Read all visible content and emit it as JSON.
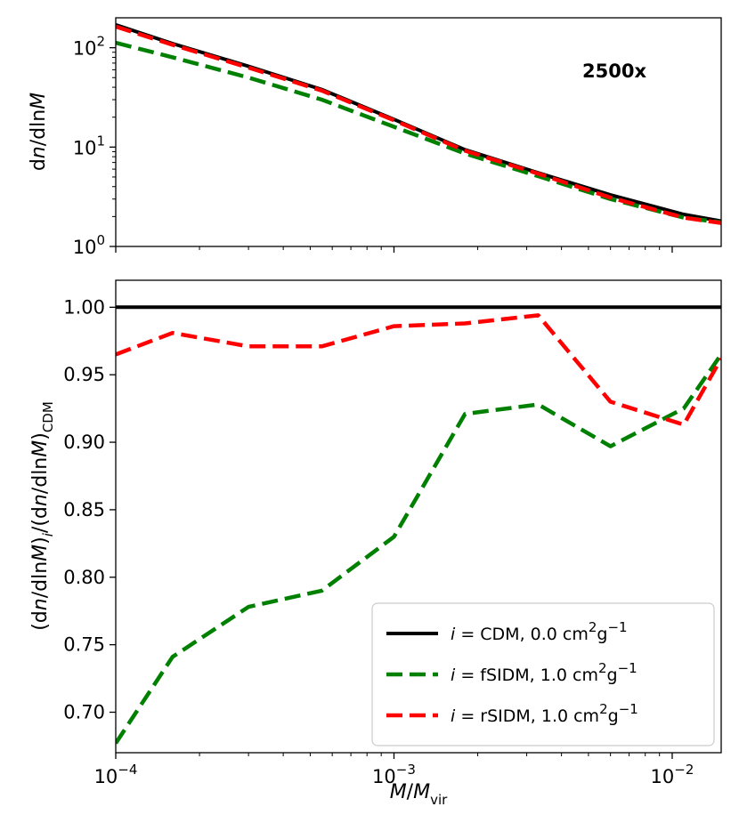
{
  "chart_data": [
    {
      "type": "line",
      "panel": "top",
      "annotation": "2500x",
      "ylabel": "dn/dlnM",
      "ylabel_parts": {
        "prefix": "d",
        "var1": "n",
        "mid": "/dln",
        "var2": "M"
      },
      "yscale": "log",
      "xscale": "log",
      "xlim": [
        0.0001,
        0.015
      ],
      "ylim": [
        1,
        200
      ],
      "yticks": [
        {
          "value": 1,
          "base": "10",
          "exp": "0"
        },
        {
          "value": 10,
          "base": "10",
          "exp": "1"
        },
        {
          "value": 100,
          "base": "10",
          "exp": "2"
        }
      ],
      "x": [
        0.0001,
        0.00016,
        0.0003,
        0.00055,
        0.001,
        0.0018,
        0.0033,
        0.006,
        0.011,
        0.015
      ],
      "series": [
        {
          "name": "CDM",
          "color": "#000000",
          "dashed": false,
          "values": [
            170,
            110,
            65,
            38,
            19,
            9.4,
            5.5,
            3.3,
            2.1,
            1.8
          ]
        },
        {
          "name": "fSIDM",
          "color": "#008000",
          "dashed": true,
          "values": [
            112,
            80,
            50,
            30,
            16,
            8.6,
            5.1,
            3.0,
            1.95,
            1.75
          ]
        },
        {
          "name": "rSIDM",
          "color": "#ff0000",
          "dashed": true,
          "values": [
            163,
            107,
            63,
            37,
            18.6,
            9.2,
            5.4,
            3.1,
            1.95,
            1.72
          ]
        }
      ]
    },
    {
      "type": "line",
      "panel": "bottom",
      "ylabel": "(dn/dlnM)_i/(dn/dlnM)_CDM",
      "xlabel": "M/M_vir",
      "xscale": "log",
      "xlim": [
        0.0001,
        0.015
      ],
      "ylim": [
        0.67,
        1.02
      ],
      "yticks": [
        "0.70",
        "0.75",
        "0.80",
        "0.85",
        "0.90",
        "0.95",
        "1.00"
      ],
      "xticks": [
        {
          "value": 0.0001,
          "base": "10",
          "exp": "−4"
        },
        {
          "value": 0.001,
          "base": "10",
          "exp": "−3"
        },
        {
          "value": 0.01,
          "base": "10",
          "exp": "−2"
        }
      ],
      "x": [
        0.0001,
        0.00016,
        0.0003,
        0.00055,
        0.001,
        0.0018,
        0.0033,
        0.006,
        0.011,
        0.015
      ],
      "series": [
        {
          "name": "CDM",
          "color": "#000000",
          "dashed": false,
          "values": [
            1.0,
            1.0,
            1.0,
            1.0,
            1.0,
            1.0,
            1.0,
            1.0,
            1.0,
            1.0
          ]
        },
        {
          "name": "fSIDM",
          "color": "#008000",
          "dashed": true,
          "values": [
            0.677,
            0.741,
            0.778,
            0.79,
            0.83,
            0.921,
            0.928,
            0.897,
            0.925,
            0.965
          ]
        },
        {
          "name": "rSIDM",
          "color": "#ff0000",
          "dashed": true,
          "values": [
            0.965,
            0.981,
            0.971,
            0.971,
            0.986,
            0.988,
            0.994,
            0.93,
            0.913,
            0.962
          ]
        }
      ],
      "legend": {
        "placement": "lower-right",
        "entries": [
          {
            "label": "i = CDM, 0.0 cm²g⁻¹",
            "prefix": "i",
            "eq": " = ",
            "name": "CDM",
            "value": ", 0.0 cm",
            "sup1": "2",
            "unit": "g",
            "sup2": "−1",
            "color": "#000000",
            "dashed": false
          },
          {
            "label": "i = fSIDM, 1.0 cm²g⁻¹",
            "prefix": "i",
            "eq": " = ",
            "name": "fSIDM",
            "value": ", 1.0 cm",
            "sup1": "2",
            "unit": "g",
            "sup2": "−1",
            "color": "#008000",
            "dashed": true
          },
          {
            "label": "i = rSIDM, 1.0 cm²g⁻¹",
            "prefix": "i",
            "eq": " = ",
            "name": "rSIDM",
            "value": ", 1.0 cm",
            "sup1": "2",
            "unit": "g",
            "sup2": "−1",
            "color": "#ff0000",
            "dashed": true
          }
        ]
      }
    }
  ]
}
